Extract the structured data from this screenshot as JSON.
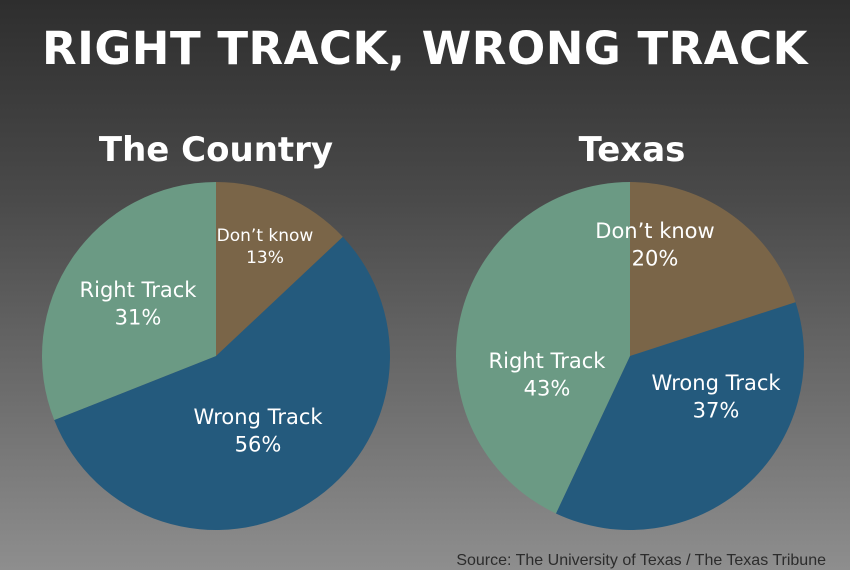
{
  "title": "RIGHT TRACK, WRONG TRACK",
  "source": "Source: The University of Texas / The Texas Tribune",
  "chart_data": [
    {
      "type": "pie",
      "title": "The Country",
      "slices": [
        {
          "label": "Don’t know",
          "value": 13,
          "value_label": "13%",
          "color": "#7a6548"
        },
        {
          "label": "Wrong Track",
          "value": 56,
          "value_label": "56%",
          "color": "#245a7d"
        },
        {
          "label": "Right Track",
          "value": 31,
          "value_label": "31%",
          "color": "#6b9a84"
        }
      ]
    },
    {
      "type": "pie",
      "title": "Texas",
      "slices": [
        {
          "label": "Don’t know",
          "value": 20,
          "value_label": "20%",
          "color": "#7a6548"
        },
        {
          "label": "Wrong Track",
          "value": 37,
          "value_label": "37%",
          "color": "#245a7d"
        },
        {
          "label": "Right Track",
          "value": 43,
          "value_label": "43%",
          "color": "#6b9a84"
        }
      ]
    }
  ]
}
